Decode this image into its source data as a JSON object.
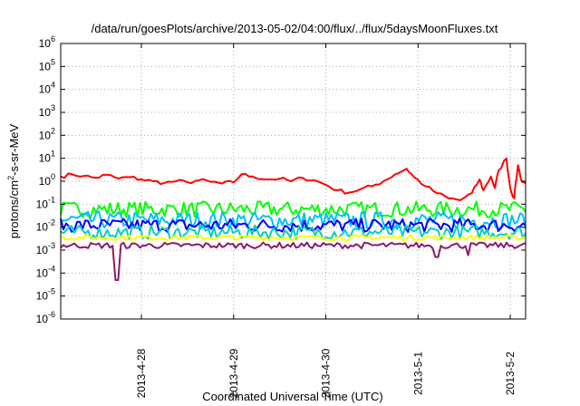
{
  "chart_data": {
    "type": "line",
    "title": "/data/run/goesPlots/archive/2013-05-02/04:00/flux/../flux/5daysMoonFluxes.txt",
    "xlabel": "Coordinated Universal Time (UTC)",
    "ylabel": {
      "base": "protons/cm",
      "sup": "2",
      "rest": "-s-sr-MeV"
    },
    "y_scale": "log",
    "ylim": [
      1e-06,
      1000000.0
    ],
    "y_ticks": [
      {
        "value": 1e-06,
        "base": "10",
        "exp": "-6"
      },
      {
        "value": 1e-05,
        "base": "10",
        "exp": "-5"
      },
      {
        "value": 0.0001,
        "base": "10",
        "exp": "-4"
      },
      {
        "value": 0.001,
        "base": "10",
        "exp": "-3"
      },
      {
        "value": 0.01,
        "base": "10",
        "exp": "-2"
      },
      {
        "value": 0.1,
        "base": "10",
        "exp": "-1"
      },
      {
        "value": 1.0,
        "base": "10",
        "exp": "0"
      },
      {
        "value": 10.0,
        "base": "10",
        "exp": "1"
      },
      {
        "value": 100.0,
        "base": "10",
        "exp": "2"
      },
      {
        "value": 1000.0,
        "base": "10",
        "exp": "3"
      },
      {
        "value": 10000.0,
        "base": "10",
        "exp": "4"
      },
      {
        "value": 100000.0,
        "base": "10",
        "exp": "5"
      },
      {
        "value": 1000000.0,
        "base": "10",
        "exp": "6"
      }
    ],
    "xlim": [
      "2013-04-27T03:00",
      "2013-05-02T04:00"
    ],
    "x_ticks": [
      {
        "value": "2013-04-28T00:00",
        "label": "2013-4-28"
      },
      {
        "value": "2013-04-29T00:00",
        "label": "2013-4-29"
      },
      {
        "value": "2013-04-30T00:00",
        "label": "2013-4-30"
      },
      {
        "value": "2013-05-01T00:00",
        "label": "2013-5-1"
      },
      {
        "value": "2013-05-02T00:00",
        "label": "2013-5-2"
      }
    ],
    "grid": true,
    "series": [
      {
        "color": "#ff0000",
        "width": 2,
        "points": [
          [
            "2013-04-27T03:00",
            1.6
          ],
          [
            "2013-04-27T06:00",
            2.0
          ],
          [
            "2013-04-27T09:00",
            1.7
          ],
          [
            "2013-04-27T12:00",
            1.4
          ],
          [
            "2013-04-27T15:00",
            1.9
          ],
          [
            "2013-04-27T18:00",
            1.3
          ],
          [
            "2013-04-27T21:00",
            1.5
          ],
          [
            "2013-04-28T00:00",
            1.2
          ],
          [
            "2013-04-28T03:00",
            1.0
          ],
          [
            "2013-04-28T06:00",
            0.85
          ],
          [
            "2013-04-28T09:00",
            1.0
          ],
          [
            "2013-04-28T12:00",
            0.9
          ],
          [
            "2013-04-28T15:00",
            1.1
          ],
          [
            "2013-04-28T18:00",
            0.95
          ],
          [
            "2013-04-28T21:00",
            0.8
          ],
          [
            "2013-04-29T00:00",
            0.9
          ],
          [
            "2013-04-29T02:00",
            2.0
          ],
          [
            "2013-04-29T05:00",
            1.6
          ],
          [
            "2013-04-29T09:00",
            1.2
          ],
          [
            "2013-04-29T12:00",
            1.3
          ],
          [
            "2013-04-29T15:00",
            1.0
          ],
          [
            "2013-04-29T18:00",
            1.4
          ],
          [
            "2013-04-29T21:00",
            1.1
          ],
          [
            "2013-04-30T00:00",
            0.7
          ],
          [
            "2013-04-30T03:00",
            0.4
          ],
          [
            "2013-04-30T06:00",
            0.32
          ],
          [
            "2013-04-30T09:00",
            0.45
          ],
          [
            "2013-04-30T12:00",
            0.6
          ],
          [
            "2013-04-30T15:00",
            1.0
          ],
          [
            "2013-04-30T18:00",
            2.0
          ],
          [
            "2013-04-30T21:00",
            3.5
          ],
          [
            "2013-04-30T23:00",
            1.5
          ],
          [
            "2013-05-01T02:00",
            0.6
          ],
          [
            "2013-05-01T05:00",
            0.3
          ],
          [
            "2013-05-01T08:00",
            0.18
          ],
          [
            "2013-05-01T11:00",
            0.15
          ],
          [
            "2013-05-01T14:00",
            0.3
          ],
          [
            "2013-05-01T16:00",
            1.2
          ],
          [
            "2013-05-01T17:00",
            0.4
          ],
          [
            "2013-05-01T19:00",
            1.6
          ],
          [
            "2013-05-01T20:00",
            0.5
          ],
          [
            "2013-05-01T21:00",
            3.0
          ],
          [
            "2013-05-01T23:00",
            10
          ],
          [
            "2013-05-02T00:00",
            0.5
          ],
          [
            "2013-05-02T01:00",
            0.18
          ],
          [
            "2013-05-02T02:00",
            5.0
          ],
          [
            "2013-05-02T03:00",
            1.0
          ],
          [
            "2013-05-02T04:00",
            0.8
          ]
        ]
      },
      {
        "color": "#00ff00",
        "width": 2,
        "amp": 2.2,
        "points": [
          [
            "2013-04-27T03:00",
            0.06
          ],
          [
            "2013-05-02T04:00",
            0.06
          ]
        ]
      },
      {
        "color": "#00c0ff",
        "width": 2,
        "amp": 2.4,
        "points": [
          [
            "2013-04-27T03:00",
            0.02
          ],
          [
            "2013-05-02T04:00",
            0.02
          ]
        ]
      },
      {
        "color": "#0000ff",
        "width": 2,
        "amp": 2.0,
        "points": [
          [
            "2013-04-27T03:00",
            0.012
          ],
          [
            "2013-05-02T04:00",
            0.012
          ]
        ]
      },
      {
        "color": "#00d0c0",
        "width": 2,
        "amp": 2.0,
        "points": [
          [
            "2013-04-27T03:00",
            0.006
          ],
          [
            "2013-05-02T04:00",
            0.006
          ]
        ]
      },
      {
        "color": "#ffff00",
        "width": 2,
        "amp": 1.3,
        "points": [
          [
            "2013-04-27T03:00",
            0.0035
          ],
          [
            "2013-05-02T04:00",
            0.0035
          ]
        ]
      },
      {
        "color": "#8b1a6b",
        "width": 2,
        "amp": 1.35,
        "dips": [
          [
            "2013-04-27T17:30",
            5e-05
          ],
          [
            "2013-05-01T05:00",
            0.0005
          ],
          [
            "2013-05-01T13:00",
            0.0006
          ]
        ],
        "points": [
          [
            "2013-04-27T03:00",
            0.0016
          ],
          [
            "2013-05-02T04:00",
            0.0016
          ]
        ]
      }
    ]
  }
}
